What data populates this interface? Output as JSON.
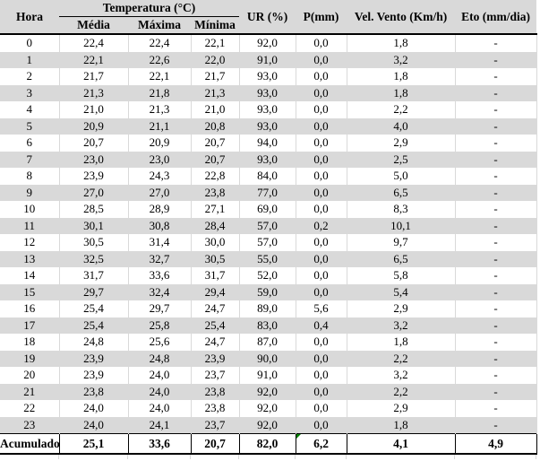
{
  "table": {
    "header": {
      "hora": "Hora",
      "temperatura": "Temperatura (°C)",
      "temperatura_sub": [
        "Média",
        "Máxima",
        "Mínima"
      ],
      "ur": "UR (%)",
      "p": "P(mm)",
      "vel_vento": "Vel. Vento (Km/h)",
      "eto": "Eto (mm/dia)"
    },
    "rows": [
      [
        "0",
        "22,4",
        "22,4",
        "22,1",
        "92,0",
        "0,0",
        "1,8",
        "-"
      ],
      [
        "1",
        "22,1",
        "22,6",
        "22,0",
        "91,0",
        "0,0",
        "3,2",
        "-"
      ],
      [
        "2",
        "21,7",
        "22,1",
        "21,7",
        "93,0",
        "0,0",
        "1,8",
        "-"
      ],
      [
        "3",
        "21,3",
        "21,8",
        "21,3",
        "93,0",
        "0,0",
        "1,8",
        "-"
      ],
      [
        "4",
        "21,0",
        "21,3",
        "21,0",
        "93,0",
        "0,0",
        "2,2",
        "-"
      ],
      [
        "5",
        "20,9",
        "21,1",
        "20,8",
        "93,0",
        "0,0",
        "4,0",
        "-"
      ],
      [
        "6",
        "20,7",
        "20,9",
        "20,7",
        "94,0",
        "0,0",
        "2,9",
        "-"
      ],
      [
        "7",
        "23,0",
        "23,0",
        "20,7",
        "93,0",
        "0,0",
        "2,5",
        "-"
      ],
      [
        "8",
        "23,9",
        "24,3",
        "22,8",
        "84,0",
        "0,0",
        "5,0",
        "-"
      ],
      [
        "9",
        "27,0",
        "27,0",
        "23,8",
        "77,0",
        "0,0",
        "6,5",
        "-"
      ],
      [
        "10",
        "28,5",
        "28,9",
        "27,1",
        "69,0",
        "0,0",
        "8,3",
        "-"
      ],
      [
        "11",
        "30,1",
        "30,8",
        "28,4",
        "57,0",
        "0,2",
        "10,1",
        "-"
      ],
      [
        "12",
        "30,5",
        "31,4",
        "30,0",
        "57,0",
        "0,0",
        "9,7",
        "-"
      ],
      [
        "13",
        "32,5",
        "32,7",
        "30,5",
        "55,0",
        "0,0",
        "6,5",
        "-"
      ],
      [
        "14",
        "31,7",
        "33,6",
        "31,7",
        "52,0",
        "0,0",
        "5,8",
        "-"
      ],
      [
        "15",
        "29,7",
        "32,4",
        "29,4",
        "59,0",
        "0,0",
        "5,4",
        "-"
      ],
      [
        "16",
        "25,4",
        "29,7",
        "24,7",
        "89,0",
        "5,6",
        "2,9",
        "-"
      ],
      [
        "17",
        "25,4",
        "25,8",
        "25,4",
        "83,0",
        "0,4",
        "3,2",
        "-"
      ],
      [
        "18",
        "24,8",
        "25,6",
        "24,7",
        "87,0",
        "0,0",
        "1,8",
        "-"
      ],
      [
        "19",
        "23,9",
        "24,8",
        "23,9",
        "90,0",
        "0,0",
        "2,2",
        "-"
      ],
      [
        "20",
        "23,9",
        "24,0",
        "23,7",
        "91,0",
        "0,0",
        "3,2",
        "-"
      ],
      [
        "21",
        "23,8",
        "24,0",
        "23,8",
        "92,0",
        "0,0",
        "2,2",
        "-"
      ],
      [
        "22",
        "24,0",
        "24,0",
        "23,8",
        "92,0",
        "0,0",
        "2,9",
        "-"
      ],
      [
        "23",
        "24,0",
        "24,1",
        "23,7",
        "92,0",
        "0,0",
        "1,8",
        "-"
      ]
    ],
    "footer": {
      "label": "Acumulado",
      "values": [
        "25,1",
        "33,6",
        "20,7",
        "82,0",
        "6,2",
        "4,1",
        "4,9"
      ],
      "error_indicator": {
        "cell": "P(mm) total",
        "color": "#008000"
      }
    }
  },
  "colors": {
    "header_bg": "#d9d9d9",
    "row_alt_bg": "#d9d9d9",
    "grid_line": "#d9d9d9",
    "rule": "#000000",
    "text": "#000000",
    "indicator_green": "#008000"
  }
}
